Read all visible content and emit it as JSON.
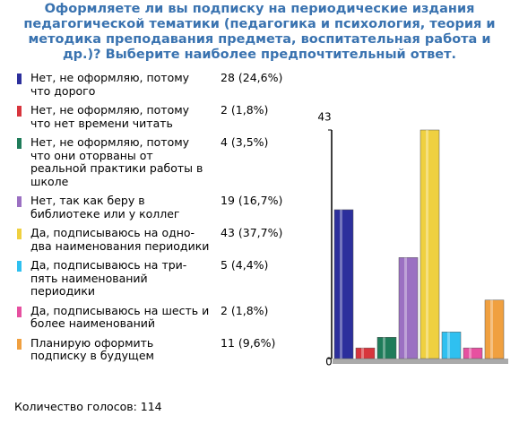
{
  "chart_data": {
    "type": "bar",
    "title": "Оформляете ли вы подписку на периодические издания педагогической тематики (педагогика и психология, теория и методика преподавания предмета, воспитательная работа и др.)? Выберите наиболее предпочтительный ответ.",
    "categories": [
      "Нет, не оформляю, потому что дорого",
      "Нет, не оформляю, потому что нет времени читать",
      "Нет, не оформляю, потому что они оторваны от реальной практики работы в школе",
      "Нет, так как беру в библиотеке или у коллег",
      "Да, подписываюсь на одно-два наименования периодики",
      "Да, подписываюсь на три-пять наименований периодики",
      "Да, подписываюсь на шесть и более наименований",
      "Планирую оформить подписку в будущем"
    ],
    "values": [
      28,
      2,
      4,
      19,
      43,
      5,
      2,
      11
    ],
    "value_labels": [
      "28 (24,6%)",
      "2 (1,8%)",
      "4 (3,5%)",
      "19 (16,7%)",
      "43 (37,7%)",
      "5 (4,4%)",
      "2 (1,8%)",
      "11 (9,6%)"
    ],
    "colors": [
      "#2c2f9c",
      "#d8353d",
      "#1f7c5a",
      "#9b70c2",
      "#efd040",
      "#2fc0f0",
      "#e650a0",
      "#f0a040"
    ],
    "ylim": [
      0,
      43
    ],
    "yticks": [
      0,
      43
    ],
    "footer": "Количество голосов: 114"
  }
}
